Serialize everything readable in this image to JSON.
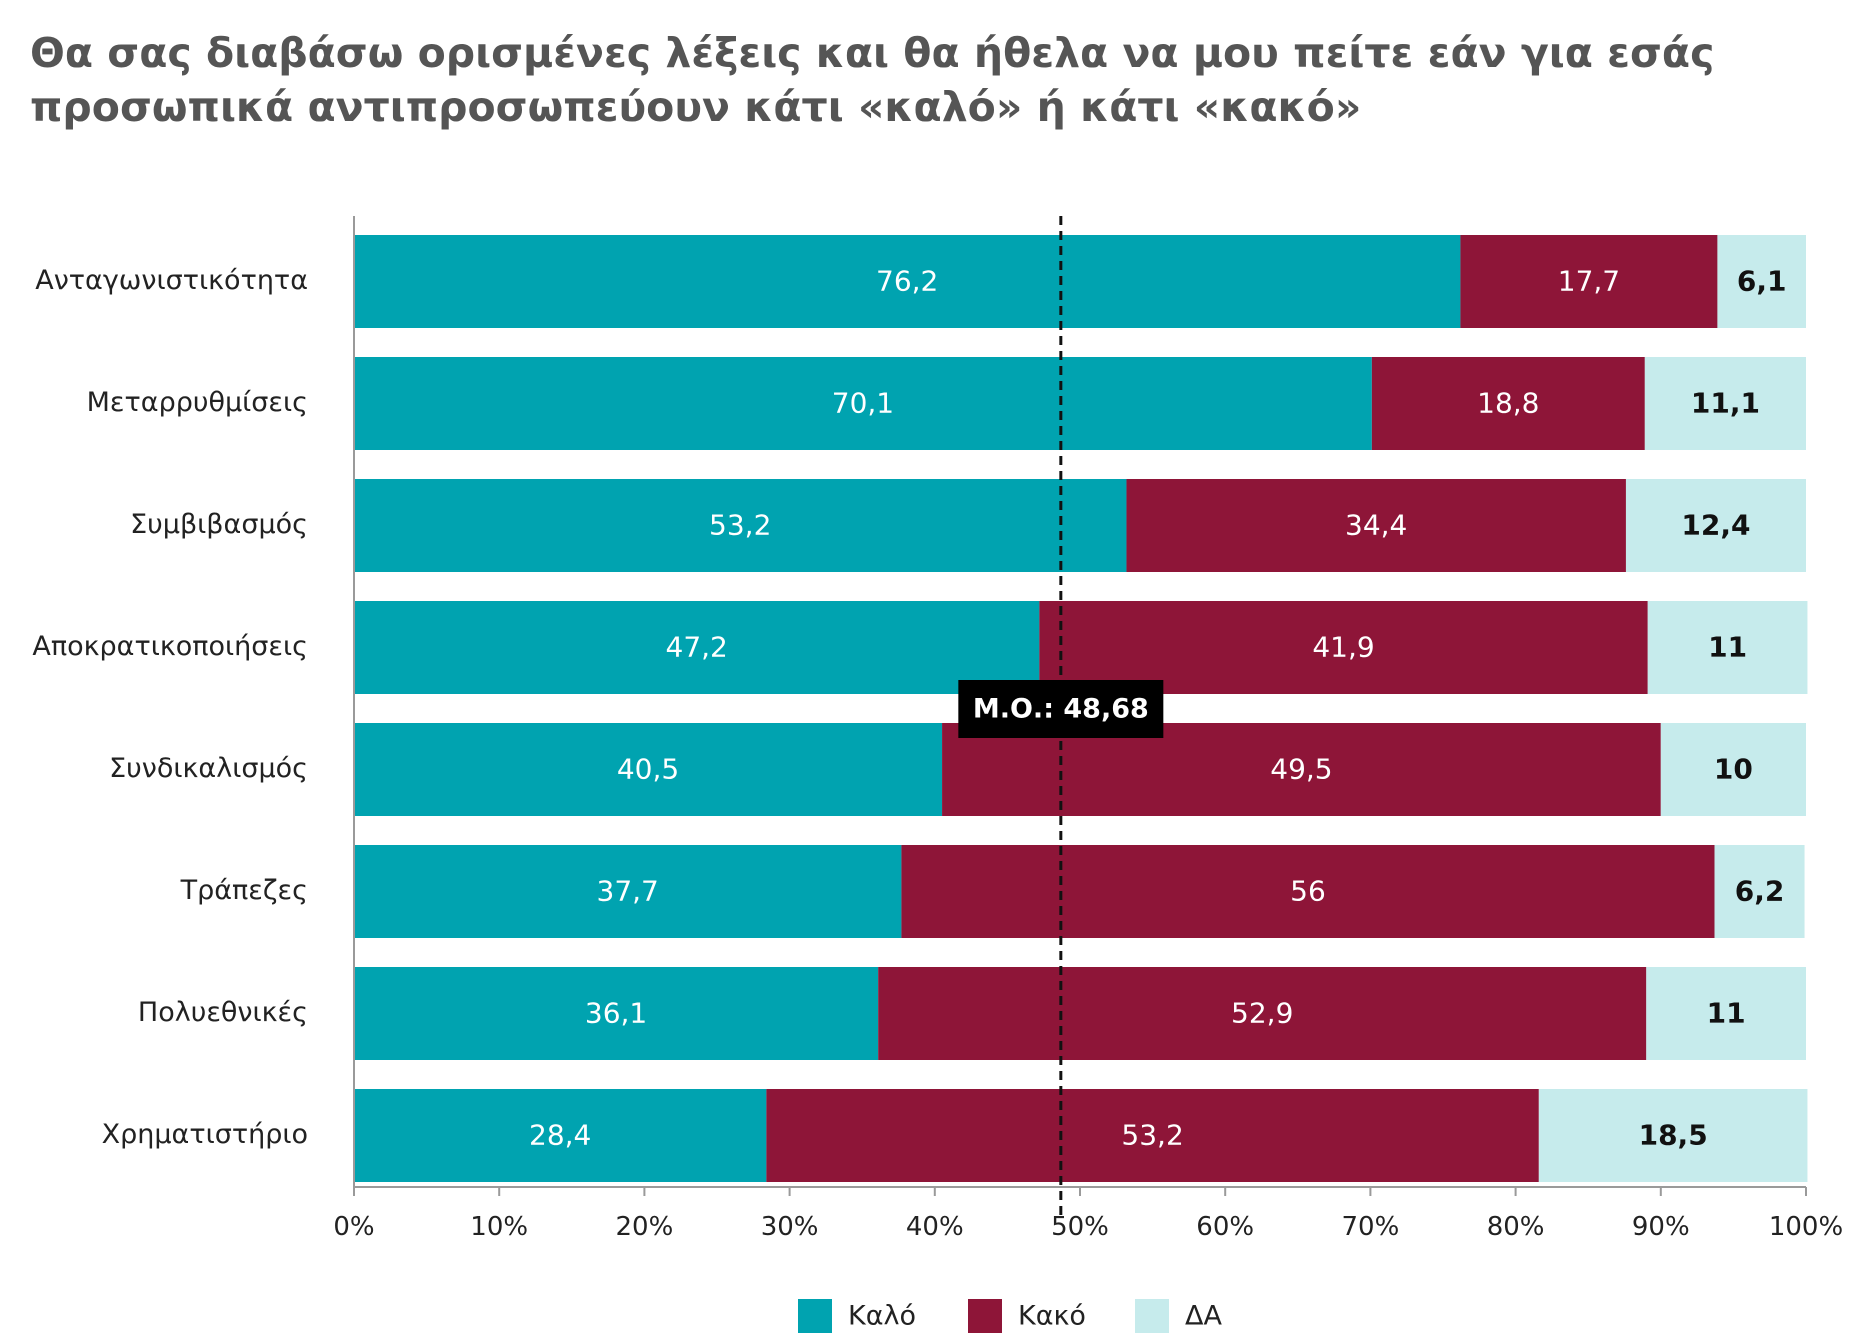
{
  "chart_data": {
    "type": "bar",
    "orientation": "horizontal",
    "stacked": true,
    "title": "Θα σας διαβάσω ορισμένες λέξεις και θα ήθελα να μου πείτε εάν για εσάς προσωπικά αντιπροσωπεύουν κάτι «καλό» ή κάτι «κακό»",
    "categories": [
      "Ανταγωνιστικότητα",
      "Μεταρρυθμίσεις",
      "Συμβιβασμός",
      "Αποκρατικοποιήσεις",
      "Συνδικαλισμός",
      "Τράπεζες",
      "Πολυεθνικές",
      "Χρηματιστήριο"
    ],
    "series": [
      {
        "name": "Καλό",
        "color": "#00A3B0",
        "label_color": "#ffffff",
        "label_weight": "normal",
        "values": [
          76.2,
          70.1,
          53.2,
          47.2,
          40.5,
          37.7,
          36.1,
          28.4
        ],
        "labels": [
          "76,2",
          "70,1",
          "53,2",
          "47,2",
          "40,5",
          "37,7",
          "36,1",
          "28,4"
        ]
      },
      {
        "name": "Κακό",
        "color": "#8E1538",
        "label_color": "#ffffff",
        "label_weight": "normal",
        "values": [
          17.7,
          18.8,
          34.4,
          41.9,
          49.5,
          56,
          52.9,
          53.2
        ],
        "labels": [
          "17,7",
          "18,8",
          "34,4",
          "41,9",
          "49,5",
          "56",
          "52,9",
          "53,2"
        ]
      },
      {
        "name": "ΔΑ",
        "color": "#C6EBEC",
        "label_color": "#111111",
        "label_weight": "bold",
        "values": [
          6.1,
          11.1,
          12.4,
          11,
          10,
          6.2,
          11,
          18.5
        ],
        "labels": [
          "6,1",
          "11,1",
          "12,4",
          "11",
          "10",
          "6,2",
          "11",
          "18,5"
        ]
      }
    ],
    "xlim": [
      0,
      100
    ],
    "x_ticks": [
      0,
      10,
      20,
      30,
      40,
      50,
      60,
      70,
      80,
      90,
      100
    ],
    "x_tick_labels": [
      "0%",
      "10%",
      "20%",
      "30%",
      "40%",
      "50%",
      "60%",
      "70%",
      "80%",
      "90%",
      "100%"
    ],
    "grid": false,
    "legend_position": "bottom-center",
    "reference_line": {
      "value": 48.68,
      "label": "Μ.Ο.: 48,68",
      "style": "dashed",
      "color": "#111111"
    }
  }
}
